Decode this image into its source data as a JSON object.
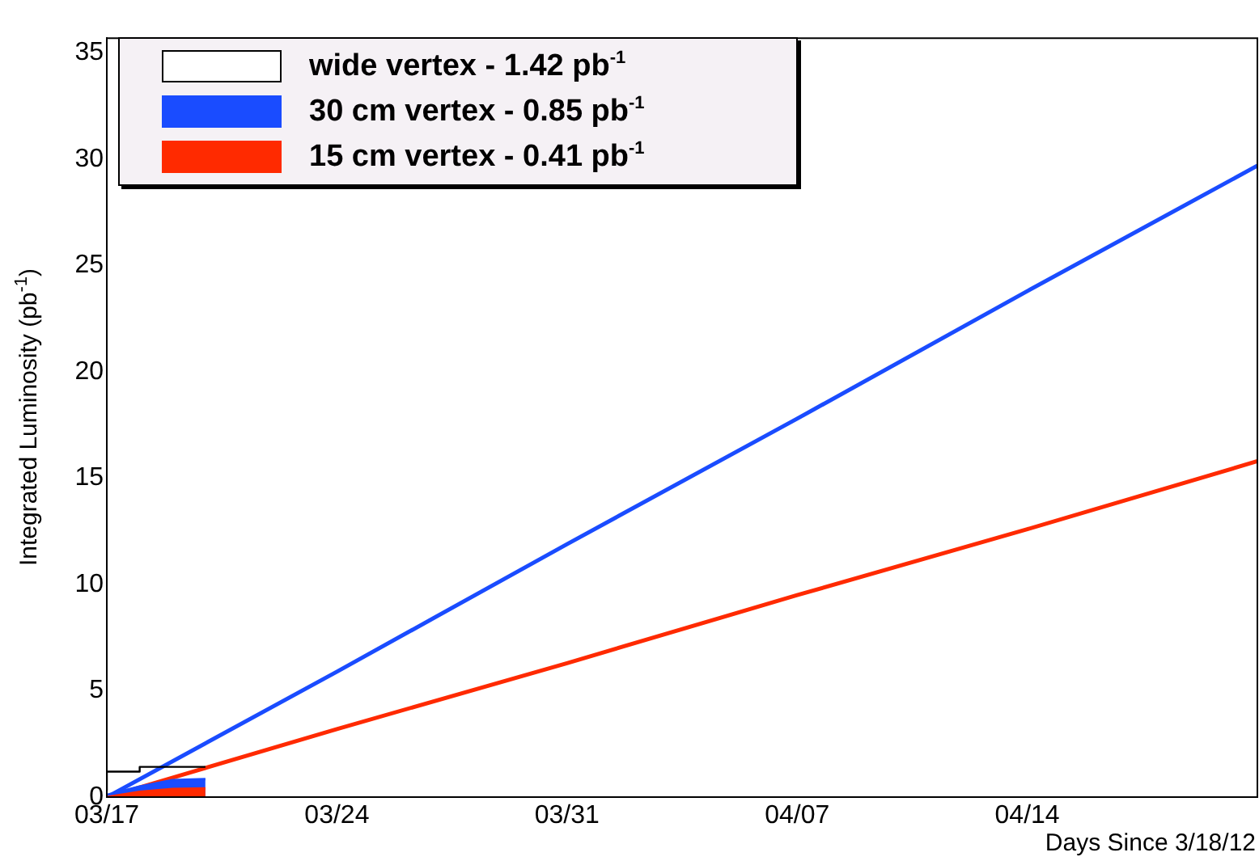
{
  "chart_data": {
    "type": "line",
    "xlabel": "Days Since 3/18/12",
    "ylabel": "Integrated Luminosity (pb$^{-1}$)",
    "xlim": [
      "--03-17",
      "--04-21"
    ],
    "ylim": [
      0,
      35.7
    ],
    "xticks": [
      {
        "value": "--03-17",
        "label": "03/17"
      },
      {
        "value": "--03-24",
        "label": "03/24"
      },
      {
        "value": "--03-31",
        "label": "03/31"
      },
      {
        "value": "--04-07",
        "label": "04/07"
      },
      {
        "value": "--04-14",
        "label": "04/14"
      }
    ],
    "yticks": [
      0,
      5,
      10,
      15,
      20,
      25,
      30,
      35
    ],
    "legend": "top left",
    "grid": false,
    "marker": "none",
    "line_style": "solid",
    "series": [
      {
        "color": "#1a4cff",
        "x": [
          "--03-17",
          "--03-24",
          "--03-31",
          "--04-07",
          "--04-14",
          "--04-21"
        ],
        "values": [
          0,
          5.9,
          11.9,
          17.8,
          23.8,
          29.7
        ]
      },
      {
        "color": "#ff2a00",
        "x": [
          "--03-17",
          "--03-24",
          "--03-31",
          "--04-07",
          "--04-14",
          "--04-21"
        ],
        "values": [
          0,
          3.2,
          6.3,
          9.5,
          12.6,
          15.8
        ]
      },
      {
        "type": "step",
        "name": "wide vertex -  1.42 pb$^{-1}$",
        "color": "#000000",
        "x": [
          "--03-17",
          "--03-18",
          "--03-19",
          "--03-20"
        ],
        "values": [
          0.3,
          1.2,
          1.42,
          1.42
        ]
      },
      {
        "type": "area",
        "name": "30 cm vertex -  0.85 pb$^{-1}$",
        "color": "#1a4cff",
        "x": [
          "--03-17",
          "--03-18",
          "--03-19",
          "--03-20"
        ],
        "values": [
          0.1,
          0.5,
          0.8,
          0.85
        ]
      },
      {
        "type": "area",
        "name": "15 cm vertex -  0.41 pb$^{-1}$",
        "color": "#ff2a00",
        "x": [
          "--03-17",
          "--03-18",
          "--03-19",
          "--03-20"
        ],
        "values": [
          0,
          0.25,
          0.38,
          0.41
        ]
      }
    ]
  }
}
